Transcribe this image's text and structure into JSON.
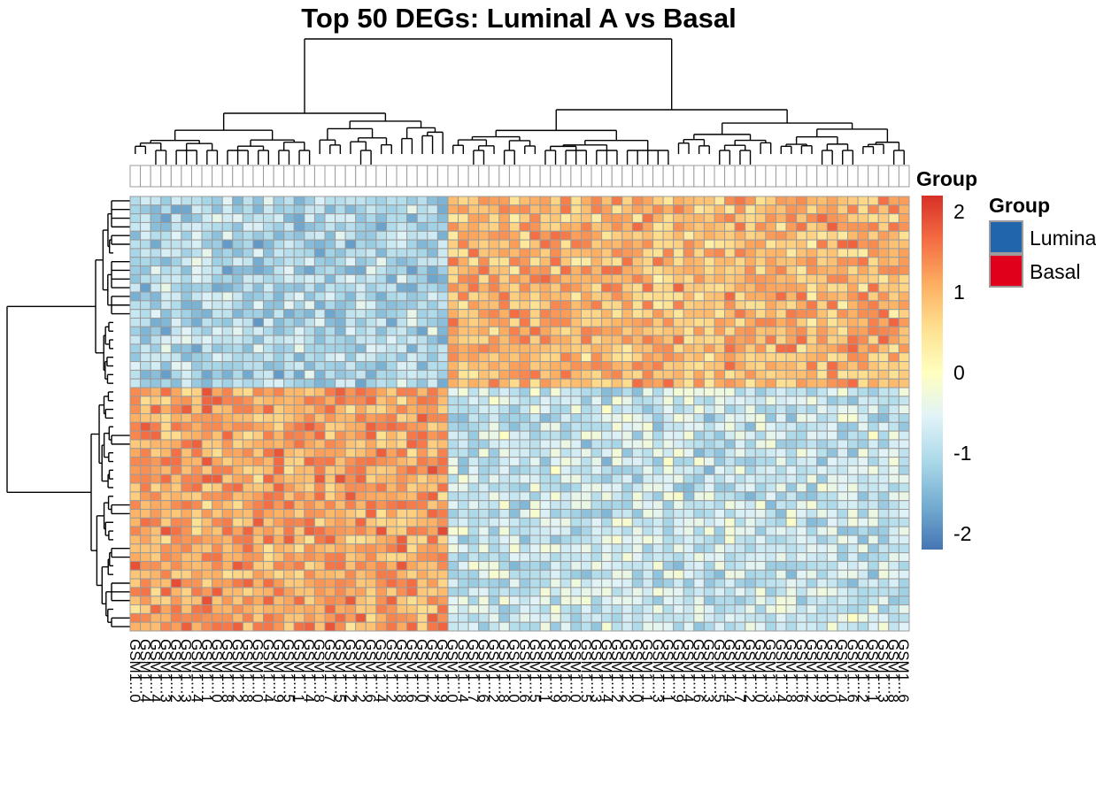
{
  "chart_data": {
    "type": "heatmap",
    "title": "Top 50 DEGs: Luminal A vs Basal",
    "n_rows": 50,
    "n_cols": 76,
    "row_labels": [],
    "column_labels": [
      "GSM1...0",
      "GSM1...4",
      "GSM1...4",
      "GSM1...3",
      "GSM1...2",
      "GSM1...3",
      "GSM1...4",
      "GSM1...1",
      "GSM1...0",
      "GSM1...8",
      "GSM1...2",
      "GSM1...8",
      "GSM1...0",
      "GSM1...4",
      "GSM1...9",
      "GSM1...5",
      "GSM1...1",
      "GSM1...4",
      "GSM1...8",
      "GSM1...7",
      "GSM1...5",
      "GSM1...2",
      "GSM1...2",
      "GSM1...6",
      "GSM1...4",
      "GSM1...2",
      "GSM1...8",
      "GSM1...6",
      "GSM1...0",
      "GSM1...2",
      "GSM1...9",
      "GSM1...0",
      "GSM1...4",
      "GSM1...7",
      "GSM1...6",
      "GSM1...2",
      "GSM1...8",
      "GSM1...0",
      "GSM1...6",
      "GSM1...5",
      "GSM1...1",
      "GSM1...9",
      "GSM1...6",
      "GSM1...0",
      "GSM1...5",
      "GSM1...3",
      "GSM1...4",
      "GSM1...2",
      "GSM1...2",
      "GSM1...0",
      "GSM1...1",
      "GSM1...3",
      "GSM1...1",
      "GSM1...9",
      "GSM1...4",
      "GSM1...6",
      "GSM1...3",
      "GSM1...5",
      "GSM1...4",
      "GSM1...7",
      "GSM1...2",
      "GSM1...0",
      "GSM1...3",
      "GSM1...4",
      "GSM1...8",
      "GSM1...6",
      "GSM1...2",
      "GSM1...9",
      "GSM1...0",
      "GSM1...4",
      "GSM1...6",
      "GSM1...2",
      "GSM1...1",
      "GSM1...3",
      "GSM1...8",
      "GSM1...6"
    ],
    "blocks": [
      {
        "rows": "1-22",
        "cols": "1-31",
        "mean_value": -1.1
      },
      {
        "rows": "1-22",
        "cols": "32-76",
        "mean_value": 1.0
      },
      {
        "rows": "23-50",
        "cols": "1-31",
        "mean_value": 1.2
      },
      {
        "rows": "23-50",
        "cols": "32-76",
        "mean_value": -0.8
      }
    ],
    "colorbar": {
      "ticks": [
        "2",
        "1",
        "0",
        "-1",
        "-2"
      ],
      "colors": [
        "#d73027",
        "#f46d43",
        "#fdae61",
        "#fee090",
        "#ffffbf",
        "#e0f3f8",
        "#abd9e9",
        "#74add1",
        "#4575b4"
      ],
      "range": [
        -2.2,
        2.2
      ]
    },
    "annotation": {
      "title": "Group",
      "legend_title": "Group",
      "legend": [
        {
          "label": "Luminal A",
          "color": "#2166ac"
        },
        {
          "label": "Basal",
          "color": "#e0001b"
        }
      ]
    }
  }
}
